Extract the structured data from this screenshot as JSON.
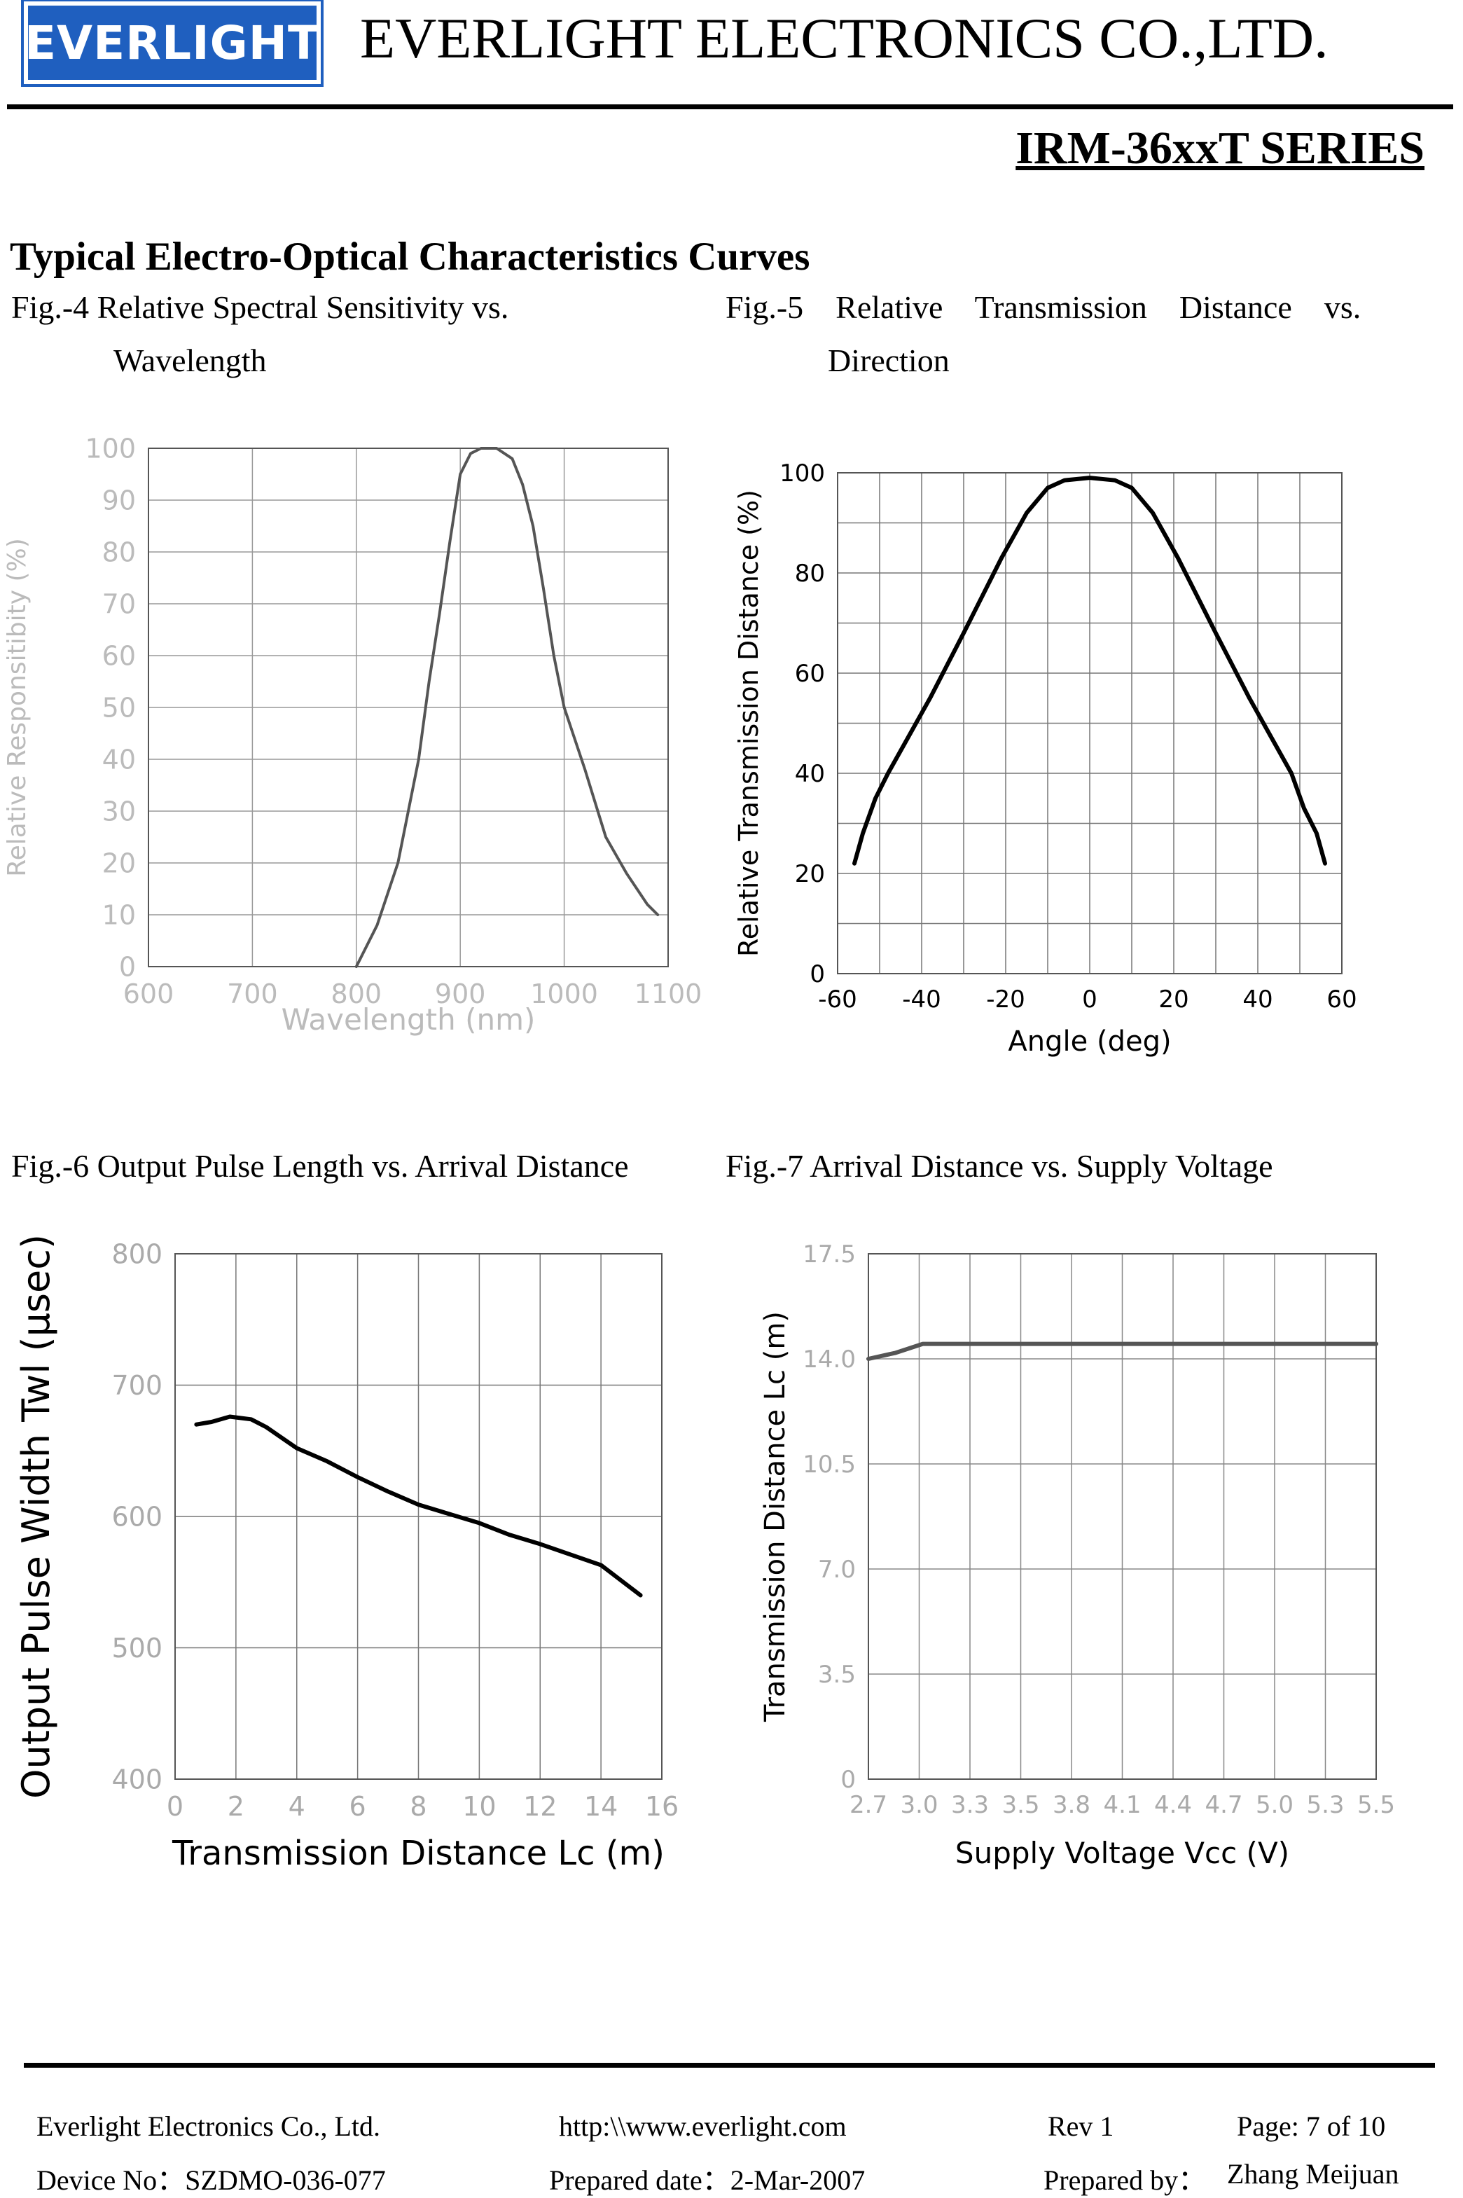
{
  "header": {
    "logo_text": "EVERLIGHT",
    "company": "EVERLIGHT ELECTRONICS CO.,LTD.",
    "series": "IRM-36xxT SERIES"
  },
  "section_title": "Typical Electro-Optical Characteristics Curves",
  "captions": {
    "fig4_line1": "Fig.-4 Relative Spectral Sensitivity vs.",
    "fig4_line2": "Wavelength",
    "fig5_line1": "Fig.-5    Relative    Transmission    Distance    vs.",
    "fig5_line2": "Direction",
    "fig6": "Fig.-6 Output Pulse Length vs. Arrival Distance",
    "fig7": "Fig.-7 Arrival Distance vs. Supply Voltage"
  },
  "chart_data": [
    {
      "id": "fig4",
      "type": "line",
      "xlabel": "Wavelength (nm)",
      "ylabel": "Relative Responsitibity (%)",
      "xlim": [
        600,
        1100
      ],
      "ylim": [
        0,
        100
      ],
      "xticks": [
        "600",
        "700",
        "800",
        "900",
        "1000",
        "1100"
      ],
      "yticks": [
        "0",
        "10",
        "20",
        "30",
        "40",
        "50",
        "60",
        "70",
        "80",
        "90",
        "100"
      ],
      "color": "#555555",
      "tick_color": "#bbbbbb",
      "x": [
        800,
        820,
        840,
        860,
        870,
        880,
        890,
        900,
        910,
        920,
        935,
        950,
        960,
        970,
        980,
        990,
        1000,
        1020,
        1040,
        1060,
        1080,
        1090
      ],
      "y": [
        0,
        8,
        20,
        40,
        55,
        68,
        82,
        95,
        99,
        100,
        100,
        98,
        93,
        85,
        73,
        60,
        50,
        38,
        25,
        18,
        12,
        10
      ]
    },
    {
      "id": "fig5",
      "type": "line",
      "xlabel": "Angle    (deg)",
      "ylabel": "Relative Transmission   Distance (%)",
      "xlim": [
        -60,
        60
      ],
      "ylim": [
        0,
        100
      ],
      "xticks": [
        "-60",
        "-40",
        "-20",
        "0",
        "20",
        "40",
        "60"
      ],
      "yticks": [
        "0",
        "20",
        "40",
        "60",
        "80",
        "100"
      ],
      "color": "#000000",
      "tick_color": "#000000",
      "x": [
        -56,
        -54,
        -51,
        -48,
        -44,
        -38,
        -30,
        -21,
        -15,
        -10,
        -6,
        0,
        6,
        10,
        15,
        21,
        30,
        38,
        44,
        48,
        51,
        54,
        56
      ],
      "y": [
        22,
        28,
        35,
        40,
        46,
        55,
        68,
        83,
        92,
        97,
        98.5,
        99,
        98.5,
        97,
        92,
        83,
        68,
        55,
        46,
        40,
        33,
        28,
        22
      ]
    },
    {
      "id": "fig6",
      "type": "line",
      "xlabel": "Transmission Distance Lc (m)",
      "ylabel": "Output Pulse Width Twl (µsec)",
      "xlim": [
        0,
        16
      ],
      "ylim": [
        400,
        800
      ],
      "xticks": [
        "0",
        "2",
        "4",
        "6",
        "8",
        "10",
        "12",
        "14",
        "16"
      ],
      "yticks": [
        "400",
        "500",
        "600",
        "700",
        "800"
      ],
      "color": "#000000",
      "tick_color": "#aaaaaa",
      "x": [
        0.7,
        1.2,
        1.8,
        2.5,
        3.0,
        3.5,
        4.0,
        5.0,
        6.0,
        7.0,
        8.0,
        9.0,
        10.0,
        11.0,
        12.0,
        13.0,
        14.0,
        15.3
      ],
      "y": [
        670,
        672,
        676,
        674,
        668,
        660,
        652,
        642,
        630,
        619,
        609,
        602,
        595,
        586,
        579,
        571,
        563,
        540
      ]
    },
    {
      "id": "fig7",
      "type": "line",
      "xlabel": "Supply Voltage Vcc (V)",
      "ylabel": "Transmission Distance Lc (m)",
      "xlim": [
        2.7,
        5.5
      ],
      "ylim": [
        0,
        17.5
      ],
      "xticks": [
        "2.7",
        "3.0",
        "3.3",
        "3.5",
        "3.8",
        "4.1",
        "4.4",
        "4.7",
        "5.0",
        "5.3",
        "5.5"
      ],
      "yticks": [
        "0",
        "3.5",
        "7.0",
        "10.5",
        "14.0",
        "17.5"
      ],
      "color": "#555555",
      "tick_color": "#aaaaaa",
      "x": [
        2.7,
        2.85,
        2.95,
        3.0,
        3.3,
        4.0,
        5.0,
        5.5
      ],
      "y": [
        14.0,
        14.2,
        14.4,
        14.5,
        14.5,
        14.5,
        14.5,
        14.5
      ]
    }
  ],
  "footer": {
    "company": "Everlight Electronics Co., Ltd.",
    "url": "http:\\\\www.everlight.com",
    "rev": "Rev 1",
    "page": "Page: 7 of 10",
    "device": "Device No：SZDMO-036-077",
    "date": "Prepared date：2-Mar-2007",
    "prepared_label": "Prepared by：",
    "prepared_name": "Zhang Meijuan"
  }
}
